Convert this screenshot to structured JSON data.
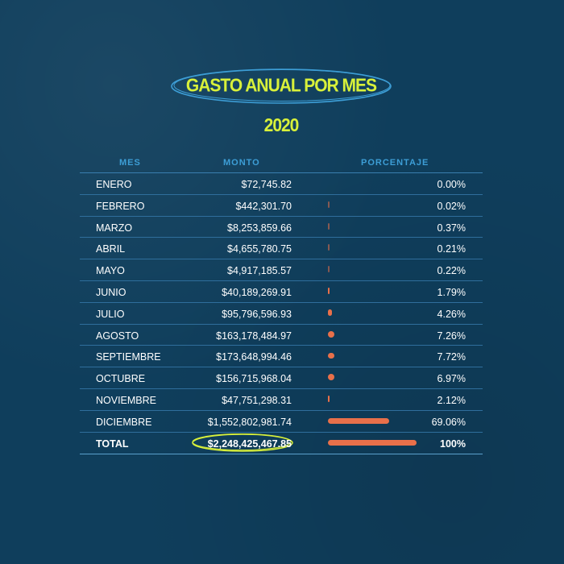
{
  "title": "GASTO ANUAL POR MES 2020",
  "colors": {
    "background": "#0f3e5c",
    "accent": "#d8f03a",
    "header": "#3d9ed6",
    "bar": "#e8704a"
  },
  "table": {
    "headers": [
      "MES",
      "MONTO",
      "PORCENTAJE"
    ]
  },
  "total": {
    "label": "TOTAL",
    "amount": "$2,248,425,467.85",
    "percent": "100%",
    "value": 100
  },
  "chart_data": {
    "type": "table",
    "title": "GASTO ANUAL POR MES 2020",
    "columns": [
      "MES",
      "MONTO",
      "PORCENTAJE"
    ],
    "rows": [
      {
        "mes": "ENERO",
        "monto": "$72,745.82",
        "pct": "0.00%",
        "value": 0.0
      },
      {
        "mes": "FEBRERO",
        "monto": "$442,301.70",
        "pct": "0.02%",
        "value": 0.02
      },
      {
        "mes": "MARZO",
        "monto": "$8,253,859.66",
        "pct": "0.37%",
        "value": 0.37
      },
      {
        "mes": "ABRIL",
        "monto": "$4,655,780.75",
        "pct": "0.21%",
        "value": 0.21
      },
      {
        "mes": "MAYO",
        "monto": "$4,917,185.57",
        "pct": "0.22%",
        "value": 0.22
      },
      {
        "mes": "JUNIO",
        "monto": "$40,189,269.91",
        "pct": "1.79%",
        "value": 1.79
      },
      {
        "mes": "JULIO",
        "monto": "$95,796,596.93",
        "pct": "4.26%",
        "value": 4.26
      },
      {
        "mes": "AGOSTO",
        "monto": "$163,178,484.97",
        "pct": "7.26%",
        "value": 7.26
      },
      {
        "mes": "SEPTIEMBRE",
        "monto": "$173,648,994.46",
        "pct": "7.72%",
        "value": 7.72
      },
      {
        "mes": "OCTUBRE",
        "monto": "$156,715,968.04",
        "pct": "6.97%",
        "value": 6.97
      },
      {
        "mes": "NOVIEMBRE",
        "monto": "$47,751,298.31",
        "pct": "2.12%",
        "value": 2.12
      },
      {
        "mes": "DICIEMBRE",
        "monto": "$1,552,802,981.74",
        "pct": "69.06%",
        "value": 69.06
      }
    ]
  }
}
